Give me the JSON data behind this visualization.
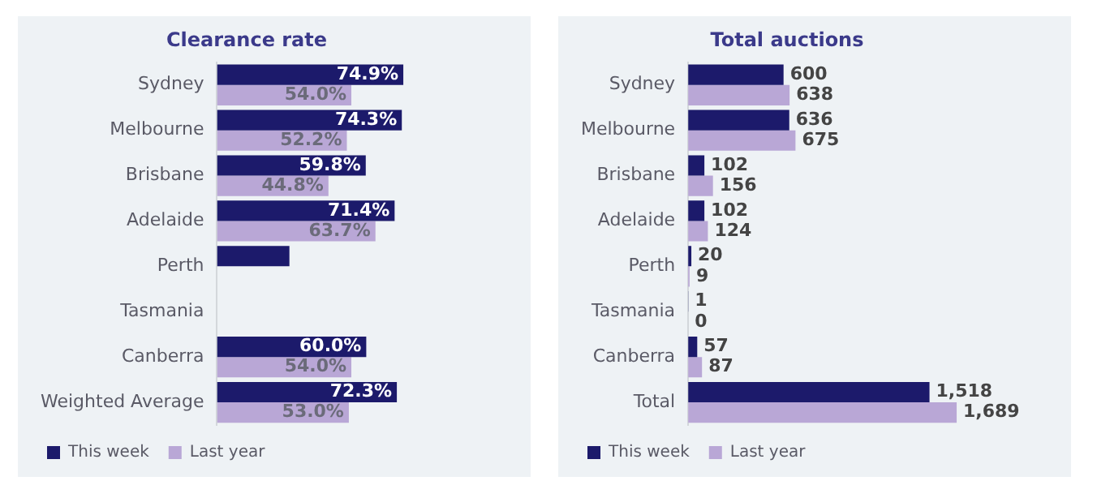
{
  "chart_data": [
    {
      "type": "bar",
      "orientation": "horizontal",
      "title": "Clearance rate",
      "categories": [
        "Sydney",
        "Melbourne",
        "Brisbane",
        "Adelaide",
        "Perth",
        "Tasmania",
        "Canberra",
        "Weighted Average"
      ],
      "tick_labels": "y",
      "grid": false,
      "legend": "bottom left",
      "series": [
        {
          "name": "This week",
          "color": "#1c1a6b",
          "values": [
            74.9,
            74.3,
            59.8,
            71.4,
            29.1,
            null,
            60.0,
            72.3
          ],
          "value_labels": [
            "74.9%",
            "74.3%",
            "59.8%",
            "71.4%",
            null,
            null,
            "60.0%",
            "72.3%"
          ]
        },
        {
          "name": "Last year",
          "color": "#b9a7d6",
          "values": [
            54.0,
            52.2,
            44.8,
            63.7,
            null,
            null,
            54.0,
            53.0
          ],
          "value_labels": [
            "54.0%",
            "52.2%",
            "44.8%",
            "63.7%",
            null,
            null,
            "54.0%",
            "53.0%"
          ]
        }
      ]
    },
    {
      "type": "bar",
      "orientation": "horizontal",
      "title": "Total auctions",
      "categories": [
        "Sydney",
        "Melbourne",
        "Brisbane",
        "Adelaide",
        "Perth",
        "Tasmania",
        "Canberra",
        "Total"
      ],
      "tick_labels": "y",
      "grid": false,
      "legend": "bottom left",
      "series": [
        {
          "name": "This week",
          "color": "#1c1a6b",
          "values": [
            600,
            636,
            102,
            102,
            20,
            1,
            57,
            1518
          ],
          "value_labels": [
            "600",
            "636",
            "102",
            "102",
            "20",
            "1",
            "57",
            "1,518"
          ]
        },
        {
          "name": "Last year",
          "color": "#b9a7d6",
          "values": [
            638,
            675,
            156,
            124,
            9,
            0,
            87,
            1689
          ],
          "value_labels": [
            "638",
            "675",
            "156",
            "124",
            "9",
            "0",
            "87",
            "1,689"
          ]
        }
      ]
    }
  ]
}
